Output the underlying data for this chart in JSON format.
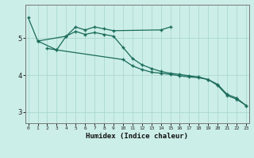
{
  "xlabel": "Humidex (Indice chaleur)",
  "background_color": "#cceee8",
  "grid_color": "#aad8d0",
  "line_color": "#1a6b5a",
  "ylim": [
    2.7,
    5.9
  ],
  "yticks": [
    3,
    4,
    5
  ],
  "xlim": [
    -0.3,
    23.3
  ],
  "s1_x": [
    0,
    1,
    4,
    5,
    6,
    7,
    8,
    9,
    14,
    15
  ],
  "s1_y": [
    5.55,
    4.92,
    5.05,
    5.3,
    5.22,
    5.3,
    5.25,
    5.2,
    5.22,
    5.3
  ],
  "s2_x": [
    1,
    3,
    4,
    5,
    6,
    7,
    8,
    9,
    10,
    11,
    12,
    13,
    14,
    15,
    16,
    17,
    18,
    19,
    20,
    21,
    22,
    23
  ],
  "s2_y": [
    4.92,
    4.68,
    5.05,
    5.18,
    5.1,
    5.15,
    5.1,
    5.05,
    4.75,
    4.45,
    4.28,
    4.18,
    4.1,
    4.05,
    4.02,
    3.98,
    3.95,
    3.88,
    3.75,
    3.48,
    3.38,
    3.18
  ],
  "s3_x": [
    2,
    3,
    10,
    11,
    12,
    13,
    14,
    15,
    16,
    17,
    18,
    19,
    20,
    21,
    22,
    23
  ],
  "s3_y": [
    4.72,
    4.68,
    4.42,
    4.25,
    4.15,
    4.08,
    4.05,
    4.02,
    3.98,
    3.95,
    3.93,
    3.88,
    3.72,
    3.45,
    3.35,
    3.18
  ]
}
